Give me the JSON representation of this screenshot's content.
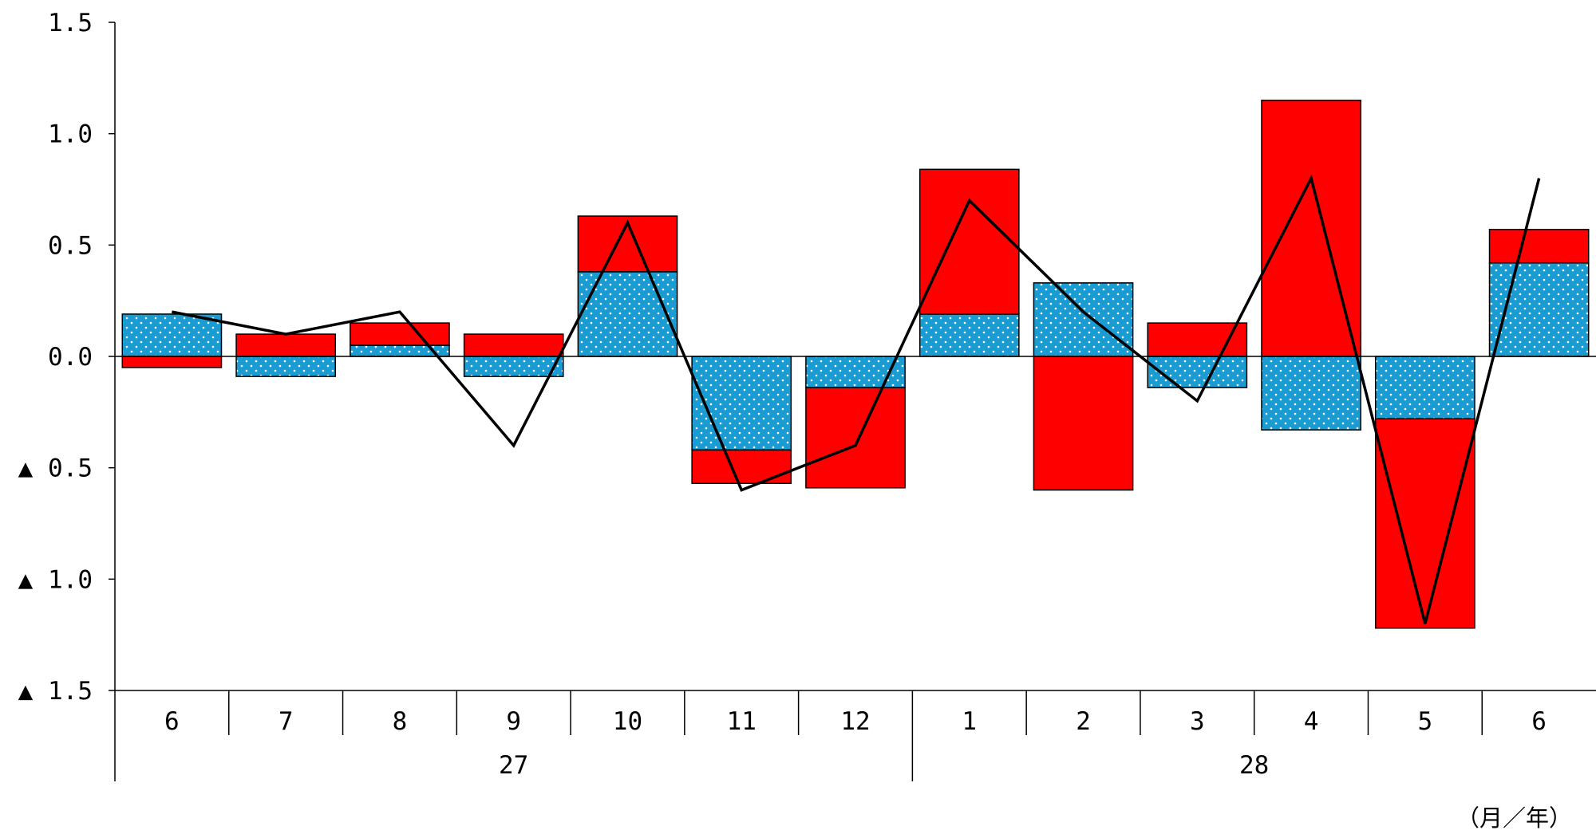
{
  "chart_data": {
    "type": "bar",
    "stacked": true,
    "categories": [
      "6",
      "7",
      "8",
      "9",
      "10",
      "11",
      "12",
      "1",
      "2",
      "3",
      "4",
      "5",
      "6"
    ],
    "year_groups": [
      {
        "label": "27",
        "count": 7
      },
      {
        "label": "28",
        "count": 6
      }
    ],
    "unit_label": "（月／年）",
    "ylim": [
      -1.5,
      1.5
    ],
    "yticks": [
      {
        "value": 1.5,
        "label": "1.5"
      },
      {
        "value": 1.0,
        "label": "1.0"
      },
      {
        "value": 0.5,
        "label": "0.5"
      },
      {
        "value": 0.0,
        "label": "0.0"
      },
      {
        "value": -0.5,
        "label": "▲ 0.5"
      },
      {
        "value": -1.0,
        "label": "▲ 1.0"
      },
      {
        "value": -1.5,
        "label": "▲ 1.5"
      }
    ],
    "series": [
      {
        "kind": "bar",
        "color": "#1a9bd1",
        "pattern": "dotted",
        "values": [
          0.19,
          -0.09,
          0.05,
          -0.09,
          0.38,
          -0.42,
          -0.14,
          0.19,
          0.33,
          -0.14,
          -0.33,
          -0.28,
          0.42
        ]
      },
      {
        "kind": "bar",
        "color": "#ff0000",
        "values": [
          -0.05,
          0.1,
          0.1,
          0.1,
          0.25,
          -0.15,
          -0.45,
          0.65,
          -0.6,
          0.15,
          1.15,
          -0.94,
          0.15
        ]
      },
      {
        "kind": "line",
        "color": "#000000",
        "values": [
          0.2,
          0.1,
          0.2,
          -0.4,
          0.6,
          -0.6,
          -0.4,
          0.7,
          0.2,
          -0.2,
          0.8,
          -1.2,
          0.8
        ]
      }
    ],
    "grid": false,
    "legend": "none"
  }
}
